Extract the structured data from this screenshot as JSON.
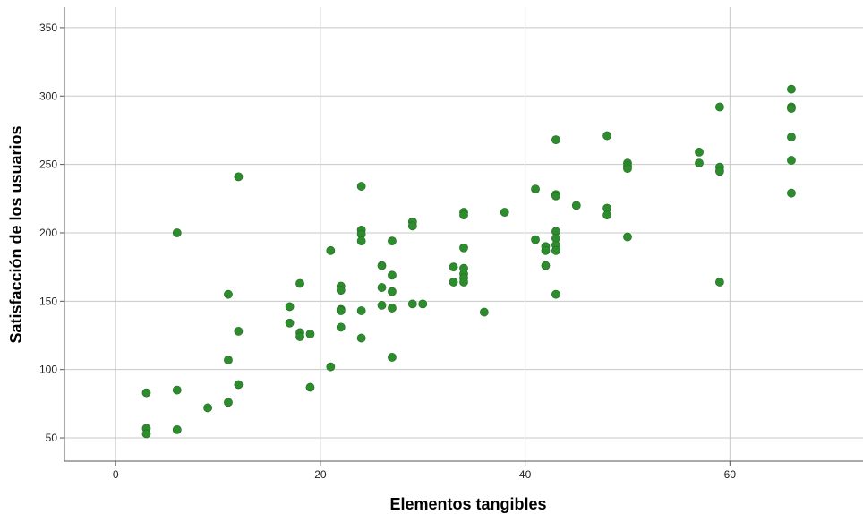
{
  "chart_data": {
    "type": "scatter",
    "xlabel": "Elementos tangibles",
    "ylabel": "Satisfacción de los usuarios",
    "xlim": [
      -5,
      73
    ],
    "ylim": [
      33,
      365
    ],
    "xticks": [
      0,
      20,
      40,
      60
    ],
    "yticks": [
      50,
      100,
      150,
      200,
      250,
      300,
      350
    ],
    "grid": true,
    "point_color": "#2e8b2e",
    "points": [
      [
        3,
        83
      ],
      [
        3,
        57
      ],
      [
        3,
        53
      ],
      [
        6,
        200
      ],
      [
        6,
        85
      ],
      [
        6,
        56
      ],
      [
        9,
        72
      ],
      [
        11,
        155
      ],
      [
        11,
        107
      ],
      [
        11,
        76
      ],
      [
        12,
        241
      ],
      [
        12,
        128
      ],
      [
        12,
        89
      ],
      [
        17,
        146
      ],
      [
        17,
        134
      ],
      [
        18,
        163
      ],
      [
        18,
        127
      ],
      [
        18,
        124
      ],
      [
        19,
        126
      ],
      [
        19,
        87
      ],
      [
        21,
        187
      ],
      [
        21,
        102
      ],
      [
        22,
        161
      ],
      [
        22,
        158
      ],
      [
        22,
        144
      ],
      [
        22,
        143
      ],
      [
        22,
        131
      ],
      [
        24,
        234
      ],
      [
        24,
        202
      ],
      [
        24,
        199
      ],
      [
        24,
        194
      ],
      [
        24,
        143
      ],
      [
        24,
        123
      ],
      [
        26,
        176
      ],
      [
        26,
        160
      ],
      [
        26,
        147
      ],
      [
        27,
        194
      ],
      [
        27,
        169
      ],
      [
        27,
        157
      ],
      [
        27,
        145
      ],
      [
        27,
        109
      ],
      [
        29,
        208
      ],
      [
        29,
        205
      ],
      [
        29,
        148
      ],
      [
        30,
        148
      ],
      [
        33,
        175
      ],
      [
        33,
        164
      ],
      [
        34,
        215
      ],
      [
        34,
        213
      ],
      [
        34,
        189
      ],
      [
        34,
        174
      ],
      [
        34,
        170
      ],
      [
        34,
        167
      ],
      [
        34,
        164
      ],
      [
        36,
        142
      ],
      [
        38,
        215
      ],
      [
        41,
        232
      ],
      [
        41,
        195
      ],
      [
        42,
        190
      ],
      [
        42,
        187
      ],
      [
        42,
        176
      ],
      [
        43,
        268
      ],
      [
        43,
        228
      ],
      [
        43,
        227
      ],
      [
        43,
        201
      ],
      [
        43,
        196
      ],
      [
        43,
        191
      ],
      [
        43,
        187
      ],
      [
        43,
        155
      ],
      [
        45,
        220
      ],
      [
        48,
        271
      ],
      [
        48,
        218
      ],
      [
        48,
        213
      ],
      [
        50,
        251
      ],
      [
        50,
        249
      ],
      [
        50,
        247
      ],
      [
        50,
        197
      ],
      [
        57,
        259
      ],
      [
        57,
        251
      ],
      [
        59,
        292
      ],
      [
        59,
        248
      ],
      [
        59,
        245
      ],
      [
        59,
        164
      ],
      [
        66,
        305
      ],
      [
        66,
        292
      ],
      [
        66,
        291
      ],
      [
        66,
        270
      ],
      [
        66,
        253
      ],
      [
        66,
        229
      ]
    ]
  }
}
